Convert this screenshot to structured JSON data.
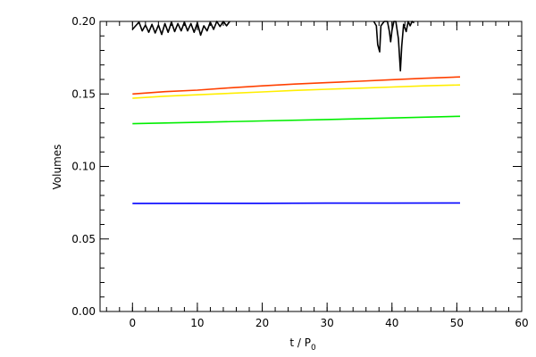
{
  "chart_data": {
    "type": "line",
    "xlabel": "t / P",
    "xlabel_subscript": "0",
    "ylabel": "Volumes",
    "xlim": [
      -5,
      60
    ],
    "ylim": [
      0.0,
      0.2
    ],
    "xticks": [
      0,
      10,
      20,
      30,
      40,
      50,
      60
    ],
    "xtick_labels": [
      "0",
      "10",
      "20",
      "30",
      "40",
      "50",
      "60"
    ],
    "yticks": [
      0.0,
      0.05,
      0.1,
      0.15,
      0.2
    ],
    "ytick_labels": [
      "0.00",
      "0.05",
      "0.10",
      "0.15",
      "0.20"
    ],
    "grid": false,
    "legend": "none",
    "series": [
      {
        "color": "#ff4000",
        "x": [
          0,
          5,
          10,
          15,
          20,
          25,
          30,
          35,
          40,
          45,
          50.5
        ],
        "y": [
          0.15,
          0.1516,
          0.1526,
          0.1542,
          0.1556,
          0.1568,
          0.1578,
          0.1588,
          0.1598,
          0.1608,
          0.1617
        ]
      },
      {
        "color": "#ffee00",
        "x": [
          0,
          5,
          10,
          15,
          20,
          25,
          30,
          35,
          40,
          45,
          50.5
        ],
        "y": [
          0.147,
          0.1484,
          0.1494,
          0.1504,
          0.1514,
          0.1524,
          0.1532,
          0.154,
          0.1548,
          0.1556,
          0.1562
        ]
      },
      {
        "color": "#00ee00",
        "x": [
          0,
          10,
          20,
          30,
          40,
          50.5
        ],
        "y": [
          0.1295,
          0.1304,
          0.1314,
          0.1324,
          0.1334,
          0.1346
        ]
      },
      {
        "color": "#0000ff",
        "x": [
          0,
          10,
          20,
          30,
          40,
          50.5
        ],
        "y": [
          0.0745,
          0.0746,
          0.0746,
          0.0747,
          0.0747,
          0.0748
        ]
      },
      {
        "color": "#000000",
        "segments": [
          {
            "x": [
              0,
              0.5,
              1.0,
              1.5,
              2.0,
              2.5,
              3.0,
              3.5,
              4.0,
              4.5,
              5.0,
              5.5,
              6.0,
              6.5,
              7.0,
              7.5,
              8.0,
              8.5,
              9.0,
              9.5,
              10.0,
              10.5,
              11.0,
              11.5,
              12.0,
              12.5,
              13.0,
              13.5,
              14.0,
              14.5,
              15.0
            ],
            "y": [
              0.1945,
              0.197,
              0.1995,
              0.1935,
              0.1975,
              0.1925,
              0.198,
              0.192,
              0.1975,
              0.191,
              0.1985,
              0.1925,
              0.1995,
              0.193,
              0.1985,
              0.1935,
              0.1995,
              0.1935,
              0.1985,
              0.1925,
              0.199,
              0.1905,
              0.197,
              0.1935,
              0.1995,
              0.1945,
              0.2,
              0.1965,
              0.2,
              0.197,
              0.2
            ]
          },
          {
            "x": [
              37.2,
              37.6,
              37.8,
              38.1,
              38.3,
              38.8,
              39.3,
              39.6,
              39.8,
              40.0,
              40.3,
              40.6,
              41.0,
              41.3,
              41.5,
              41.8,
              42.2,
              42.5,
              42.8,
              43.1,
              43.4
            ],
            "y": [
              0.2,
              0.197,
              0.184,
              0.179,
              0.197,
              0.2,
              0.2,
              0.193,
              0.186,
              0.194,
              0.2,
              0.2,
              0.188,
              0.166,
              0.183,
              0.198,
              0.193,
              0.2,
              0.197,
              0.2,
              0.199
            ]
          }
        ]
      }
    ]
  }
}
